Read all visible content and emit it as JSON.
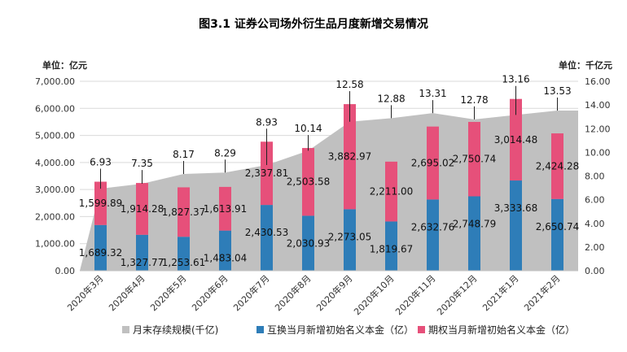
{
  "chart_data": {
    "type": "bar",
    "title": "图3.1 证券公司场外衍生品月度新增交易情况",
    "left_unit": "单位：亿元",
    "right_unit": "单位：千亿元",
    "categories": [
      "2020年3月",
      "2020年4月",
      "2020年5月",
      "2020年6月",
      "2020年7月",
      "2020年8月",
      "2020年9月",
      "2020年10月",
      "2020年11月",
      "2020年12月",
      "2021年1月",
      "2021年2月"
    ],
    "left_axis": {
      "min": 0,
      "max": 7000,
      "step": 1000,
      "ticks": [
        "0.00",
        "1,000.00",
        "2,000.00",
        "3,000.00",
        "4,000.00",
        "5,000.00",
        "6,000.00",
        "7,000.00"
      ]
    },
    "right_axis": {
      "min": 0,
      "max": 16,
      "step": 2,
      "ticks": [
        "0.00",
        "2.00",
        "4.00",
        "6.00",
        "8.00",
        "10.00",
        "12.00",
        "14.00",
        "16.00"
      ]
    },
    "series": [
      {
        "name": "月末存续规模(千亿)",
        "type": "area",
        "axis": "right",
        "color": "#c0c0c0",
        "values": [
          6.93,
          7.35,
          8.17,
          8.29,
          8.93,
          10.14,
          12.58,
          12.88,
          13.31,
          12.78,
          13.16,
          13.53
        ],
        "labels": [
          "6.93",
          "7.35",
          "8.17",
          "8.29",
          "8.93",
          "10.14",
          "12.58",
          "12.88",
          "13.31",
          "12.78",
          "13.16",
          "13.53"
        ]
      },
      {
        "name": "互换当月新增初始名义本金（亿）",
        "type": "bar",
        "axis": "left",
        "color": "#2e7db8",
        "values": [
          1689.32,
          1327.77,
          1253.61,
          1483.04,
          2430.53,
          2030.93,
          2273.05,
          1819.67,
          2632.76,
          2748.79,
          3333.68,
          2650.74
        ],
        "labels": [
          "1,689.32",
          "1,327.77",
          "1,253.61",
          "1,483.04",
          "2,430.53",
          "2,030.93",
          "2,273.05",
          "1,819.67",
          "2,632.76",
          "2,748.79",
          "3,333.68",
          "2,650.74"
        ]
      },
      {
        "name": "期权当月新增初始名义本金（亿）",
        "type": "bar",
        "axis": "left",
        "color": "#e6507a",
        "values": [
          1599.89,
          1914.28,
          1827.37,
          1613.91,
          2337.81,
          2503.58,
          3882.97,
          2211.0,
          2695.02,
          2750.74,
          3014.48,
          2424.28
        ],
        "labels": [
          "1,599.89",
          "1,914.28",
          "1,827.37",
          "1,613.91",
          "2,337.81",
          "2,503.58",
          "3,882.97",
          "2,211.00",
          "2,695.02",
          "2,750.74",
          "3,014.48",
          "2,424.28"
        ]
      }
    ]
  }
}
